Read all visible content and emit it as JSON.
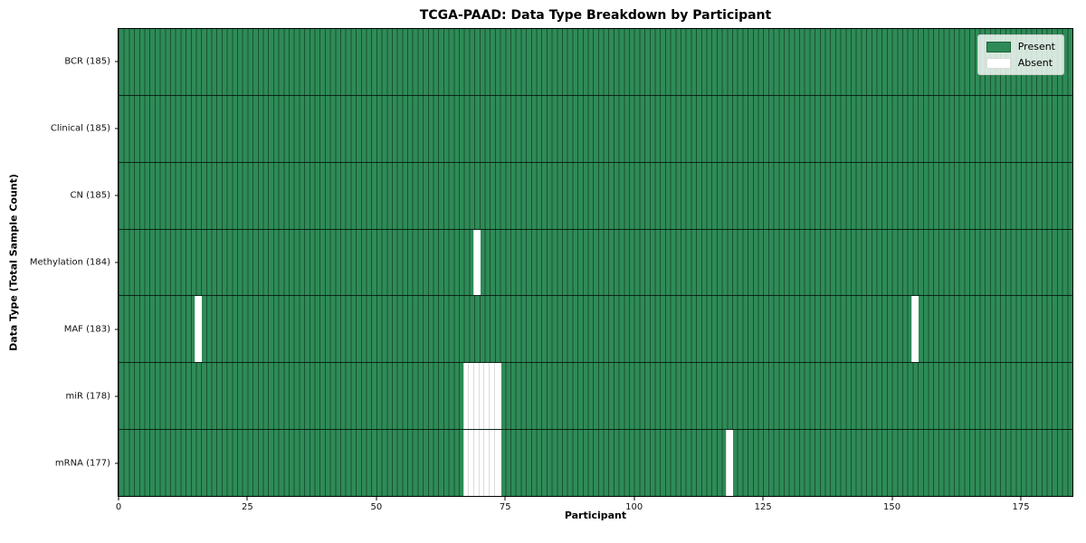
{
  "chart_data": {
    "type": "heatmap",
    "title": "TCGA-PAAD: Data Type Breakdown by Participant",
    "xlabel": "Participant",
    "ylabel": "Data Type (Total Sample Count)",
    "x_axis": {
      "min": 0,
      "max": 185,
      "ticks": [
        0,
        25,
        50,
        75,
        100,
        125,
        150,
        175
      ]
    },
    "n_participants": 185,
    "grid": "per-participant column separators",
    "colors": {
      "present": "#2E8B57",
      "absent": "#FFFFFF"
    },
    "legend": {
      "position": "upper right",
      "entries": [
        {
          "label": "Present",
          "color": "#2E8B57"
        },
        {
          "label": "Absent",
          "color": "#FFFFFF"
        }
      ]
    },
    "rows": [
      {
        "label": "BCR (185)",
        "data_type": "BCR",
        "total": 185,
        "absent_participants": []
      },
      {
        "label": "Clinical (185)",
        "data_type": "Clinical",
        "total": 185,
        "absent_participants": []
      },
      {
        "label": "CN (185)",
        "data_type": "CN",
        "total": 185,
        "absent_participants": []
      },
      {
        "label": "Methylation (184)",
        "data_type": "Methylation",
        "total": 184,
        "absent_participants": [
          69
        ]
      },
      {
        "label": "MAF (183)",
        "data_type": "MAF",
        "total": 183,
        "absent_participants": [
          15,
          154
        ]
      },
      {
        "label": "miR (178)",
        "data_type": "miR",
        "total": 178,
        "absent_participants": [
          67,
          68,
          69,
          70,
          71,
          72,
          73
        ]
      },
      {
        "label": "mRNA (177)",
        "data_type": "mRNA",
        "total": 177,
        "absent_participants": [
          67,
          68,
          69,
          70,
          71,
          72,
          73,
          118
        ]
      }
    ]
  }
}
